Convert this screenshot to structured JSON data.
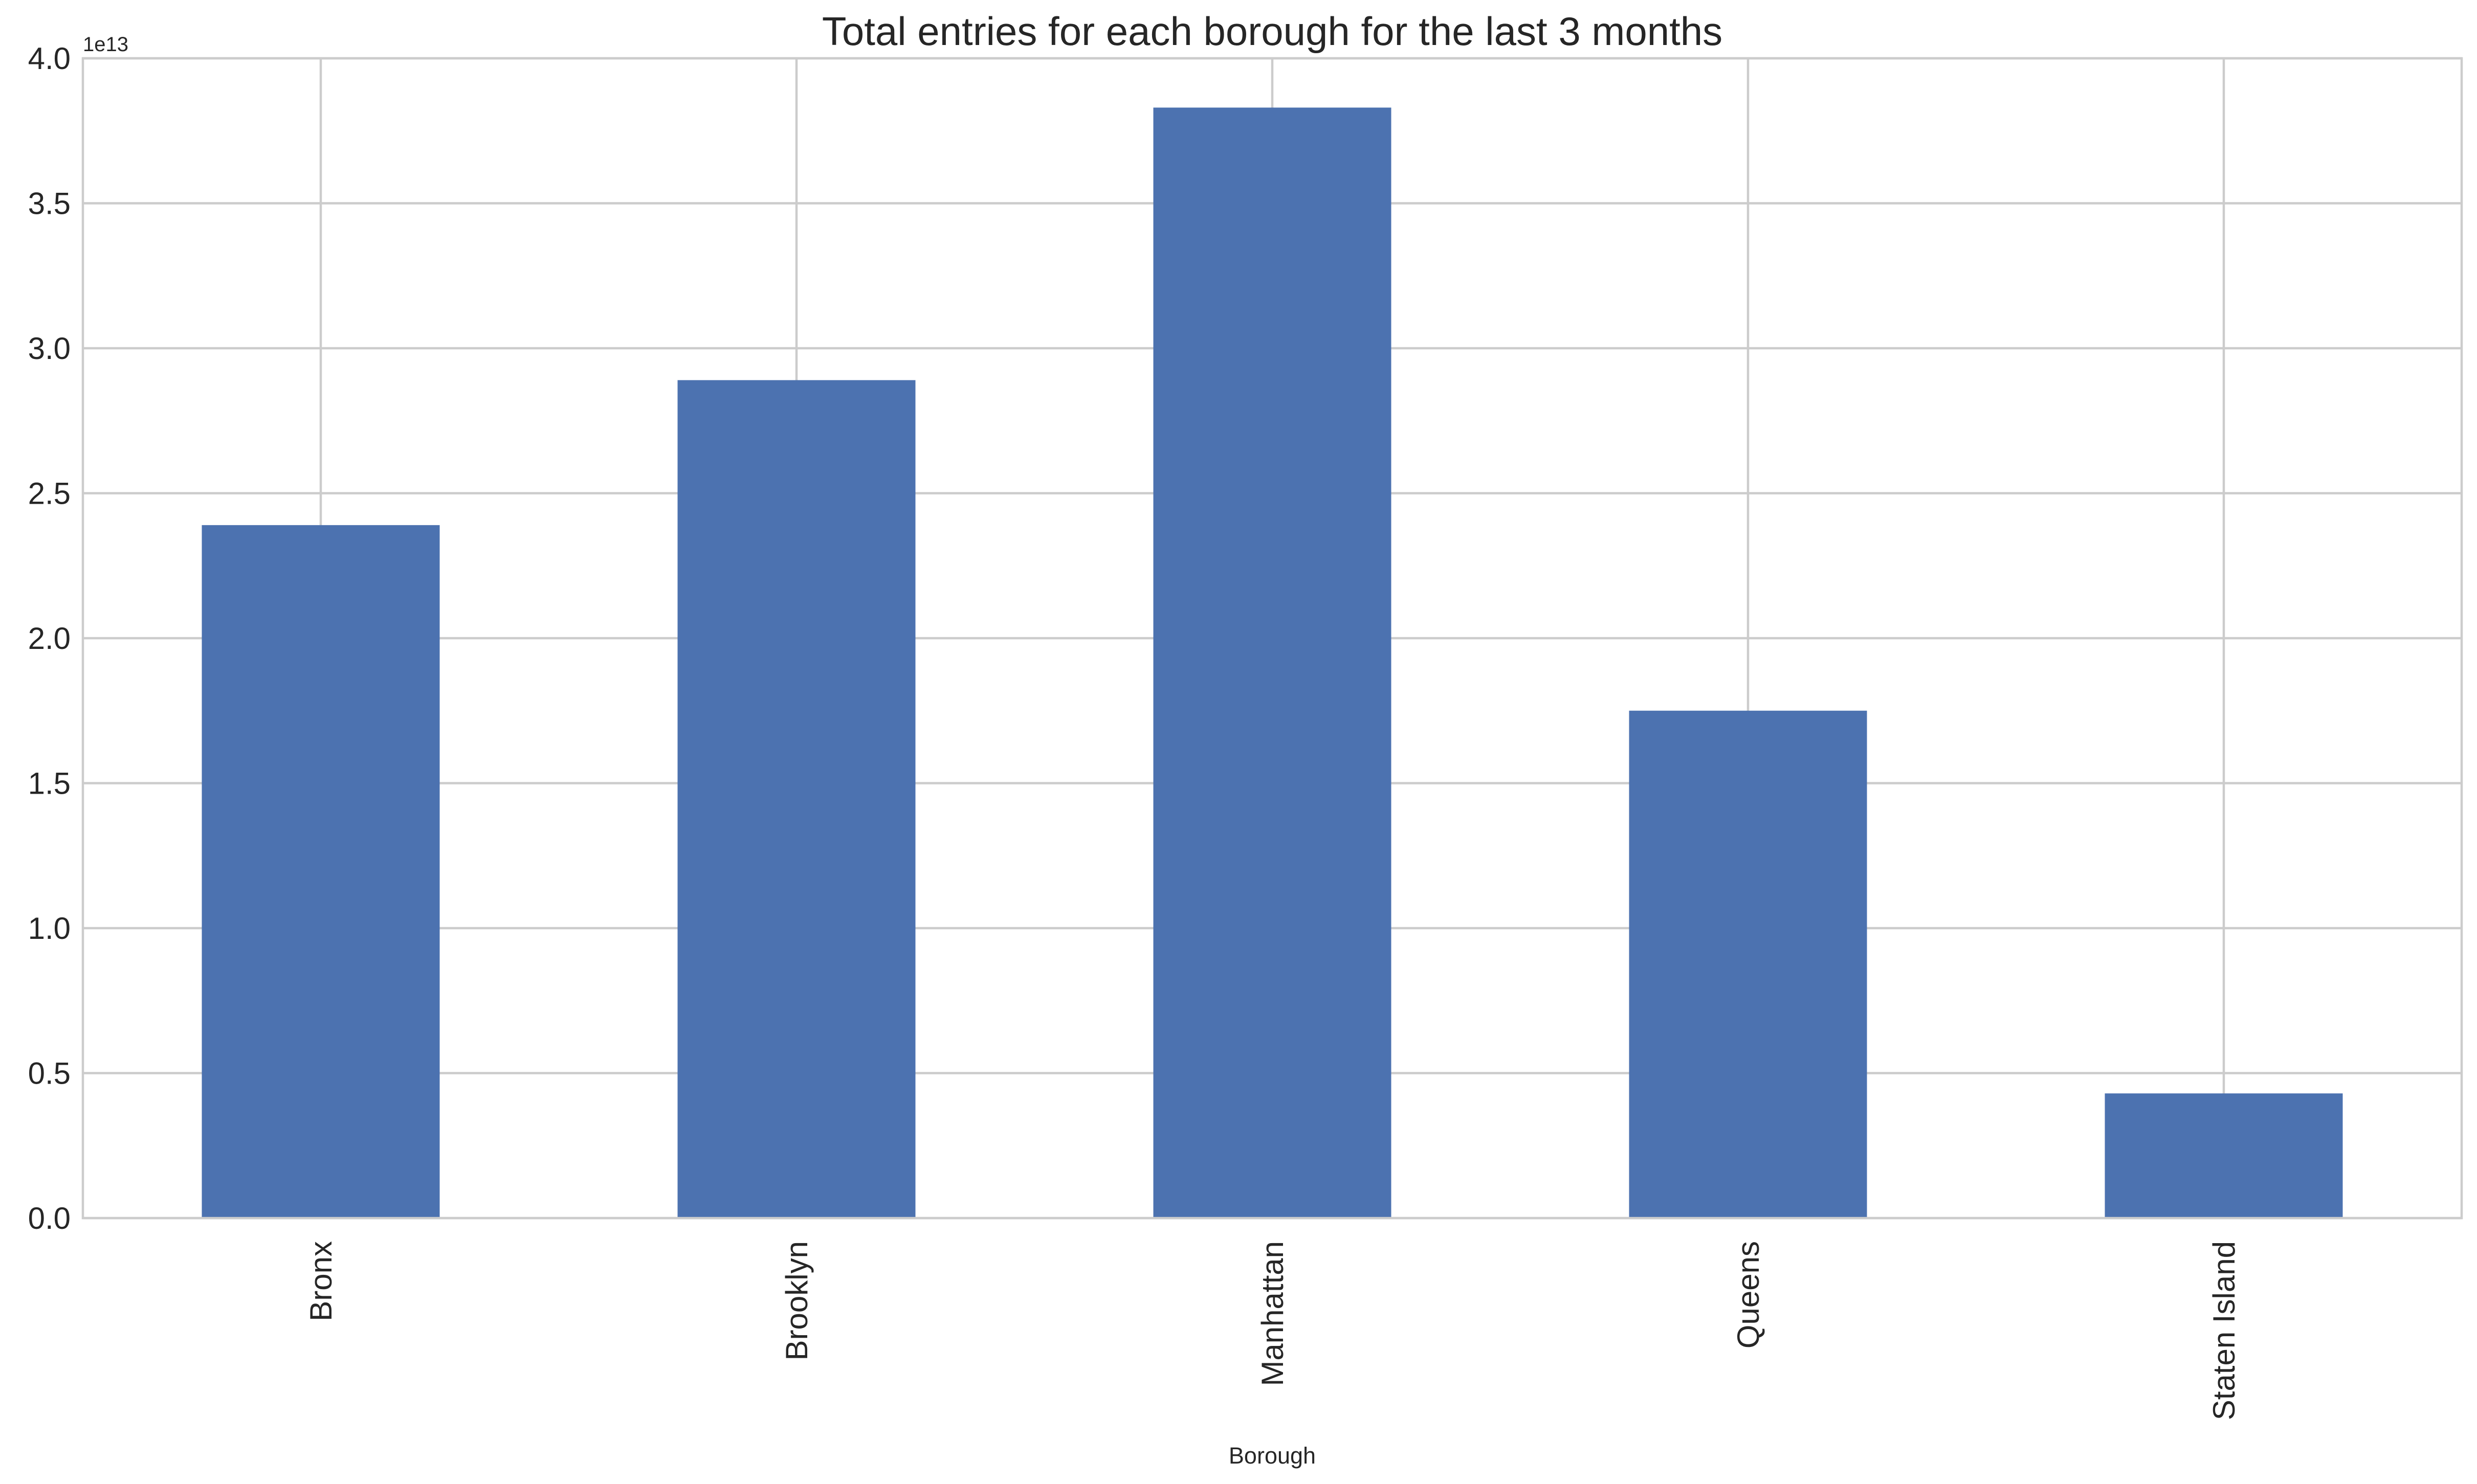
{
  "chart_data": {
    "type": "bar",
    "title": "Total entries for each borough for the last 3 months",
    "xlabel": "Borough",
    "ylabel": "",
    "y_offset_label": "1e13",
    "categories": [
      "Bronx",
      "Brooklyn",
      "Manhattan",
      "Queens",
      "Staten Island"
    ],
    "values": [
      23900000000000.0,
      28900000000000.0,
      38300000000000.0,
      17500000000000.0,
      4300000000000.0
    ],
    "ylim": [
      0,
      40000000000000.0
    ],
    "y_ticks": [
      0.0,
      0.5,
      1.0,
      1.5,
      2.0,
      2.5,
      3.0,
      3.5,
      4.0
    ],
    "y_tick_labels": [
      "0.0",
      "0.5",
      "1.0",
      "1.5",
      "2.0",
      "2.5",
      "3.0",
      "3.5",
      "4.0"
    ],
    "y_tick_scale": 10000000000000.0,
    "bar_color": "#4c72b0",
    "grid": true,
    "grid_color": "#cccccc",
    "legend": false
  }
}
